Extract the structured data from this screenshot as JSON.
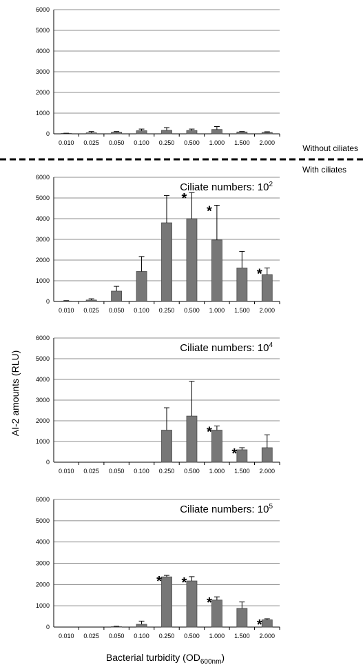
{
  "conditions": {
    "top": "Without ciliates",
    "bottom": "With ciliates"
  },
  "ylabel": "AI-2 amounts (RLU)",
  "xlabel": {
    "main": "Bacterial turbidity (OD",
    "sub": "600nm",
    "close": ")"
  },
  "colors": {
    "bar": "#777777",
    "bar_edge": "#4a4a4a",
    "grid": "#8c8c8c",
    "axis": "#000000"
  },
  "chart_data": [
    {
      "type": "bar",
      "title": "",
      "categories": [
        "0.010",
        "0.025",
        "0.050",
        "0.100",
        "0.250",
        "0.500",
        "1.000",
        "1.500",
        "2.000"
      ],
      "values": [
        20,
        50,
        80,
        150,
        170,
        160,
        210,
        90,
        70
      ],
      "errors": [
        10,
        60,
        30,
        80,
        130,
        70,
        140,
        20,
        30
      ],
      "significant": [
        false,
        false,
        false,
        false,
        false,
        false,
        false,
        false,
        false
      ],
      "ylim": [
        0,
        6000
      ],
      "yticks": [
        0,
        1000,
        2000,
        3000,
        4000,
        5000,
        6000
      ],
      "grid": true
    },
    {
      "type": "bar",
      "title": {
        "text": "Ciliate numbers:  10",
        "sup": "2"
      },
      "categories": [
        "0.010",
        "0.025",
        "0.050",
        "0.100",
        "0.250",
        "0.500",
        "1.000",
        "1.500",
        "2.000"
      ],
      "values": [
        20,
        70,
        500,
        1450,
        3800,
        4000,
        2970,
        1620,
        1300
      ],
      "errors": [
        20,
        60,
        230,
        720,
        1320,
        1260,
        1680,
        800,
        320
      ],
      "significant": [
        false,
        false,
        false,
        false,
        false,
        true,
        true,
        false,
        true
      ],
      "ylim": [
        0,
        6000
      ],
      "yticks": [
        0,
        1000,
        2000,
        3000,
        4000,
        5000,
        6000
      ],
      "grid": true
    },
    {
      "type": "bar",
      "title": {
        "text": "Ciliate numbers:  10",
        "sup": "4"
      },
      "categories": [
        "0.010",
        "0.025",
        "0.050",
        "0.100",
        "0.250",
        "0.500",
        "1.000",
        "1.500",
        "2.000"
      ],
      "values": [
        0,
        0,
        0,
        0,
        1550,
        2230,
        1550,
        600,
        700
      ],
      "errors": [
        0,
        0,
        0,
        0,
        1080,
        1680,
        200,
        100,
        620
      ],
      "significant": [
        false,
        false,
        false,
        false,
        false,
        false,
        true,
        true,
        false
      ],
      "ylim": [
        0,
        6000
      ],
      "yticks": [
        0,
        1000,
        2000,
        3000,
        4000,
        5000,
        6000
      ],
      "grid": true
    },
    {
      "type": "bar",
      "title": {
        "text": "Ciliate numbers:  10",
        "sup": "5"
      },
      "categories": [
        "0.010",
        "0.025",
        "0.050",
        "0.100",
        "0.250",
        "0.500",
        "1.000",
        "1.500",
        "2.000"
      ],
      "values": [
        0,
        0,
        20,
        130,
        2360,
        2170,
        1270,
        880,
        340
      ],
      "errors": [
        0,
        0,
        20,
        150,
        70,
        200,
        150,
        300,
        50
      ],
      "significant": [
        false,
        false,
        false,
        false,
        true,
        true,
        true,
        false,
        true
      ],
      "ylim": [
        0,
        6000
      ],
      "yticks": [
        0,
        1000,
        2000,
        3000,
        4000,
        5000,
        6000
      ],
      "grid": true
    }
  ]
}
